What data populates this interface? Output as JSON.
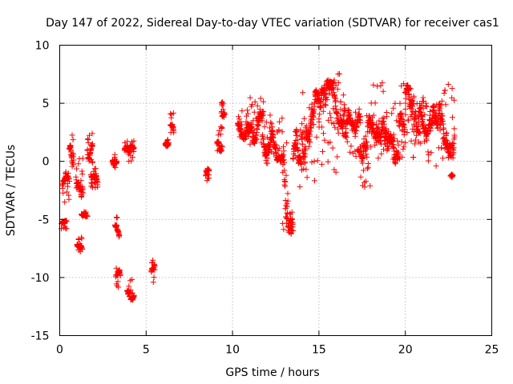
{
  "chart_data": {
    "type": "scatter",
    "title": "Day 147 of 2022, Sidereal Day-to-day VTEC variation (SDTVAR) for receiver cas1",
    "xlabel": "GPS time / hours",
    "ylabel": "SDTVAR / TECUs",
    "xlim": [
      0,
      25
    ],
    "ylim": [
      -15,
      10
    ],
    "xticks": [
      0,
      5,
      10,
      15,
      20,
      25
    ],
    "yticks": [
      -15,
      -10,
      -5,
      0,
      5,
      10
    ],
    "xtick_labels": [
      "0",
      "5",
      "10",
      "15",
      "20",
      "25"
    ],
    "ytick_labels": [
      "-15",
      "-10",
      "-5",
      "0",
      "5",
      "10"
    ],
    "grid": true,
    "marker": "+",
    "color": "#ff0000",
    "segments": [
      {
        "x": [
          0.1,
          0.4
        ],
        "y": [
          -5.8,
          -5.1
        ]
      },
      {
        "x": [
          0.15,
          0.55
        ],
        "y": [
          -3.5,
          -0.7
        ]
      },
      {
        "x": [
          0.55,
          0.8
        ],
        "y": [
          -0.5,
          2.7
        ]
      },
      {
        "x": [
          0.95,
          1.35
        ],
        "y": [
          -3.2,
          0.3
        ]
      },
      {
        "x": [
          1.0,
          1.3
        ],
        "y": [
          -7.8,
          -6.4
        ]
      },
      {
        "x": [
          1.25,
          1.6
        ],
        "y": [
          -4.8,
          -4.3
        ]
      },
      {
        "x": [
          1.6,
          1.9
        ],
        "y": [
          -0.2,
          2.5
        ]
      },
      {
        "x": [
          1.8,
          2.2
        ],
        "y": [
          -2.4,
          0.2
        ]
      },
      {
        "x": [
          3.05,
          3.3
        ],
        "y": [
          -0.6,
          0.9
        ]
      },
      {
        "x": [
          3.25,
          3.5
        ],
        "y": [
          -11.0,
          -9.0
        ]
      },
      {
        "x": [
          3.2,
          3.45
        ],
        "y": [
          -6.6,
          -4.7
        ]
      },
      {
        "x": [
          3.75,
          4.3
        ],
        "y": [
          0.0,
          1.8
        ]
      },
      {
        "x": [
          3.9,
          4.3
        ],
        "y": [
          -12.1,
          -10.0
        ]
      },
      {
        "x": [
          5.3,
          5.5
        ],
        "y": [
          -10.6,
          -8.4
        ]
      },
      {
        "x": [
          6.1,
          6.3
        ],
        "y": [
          0.8,
          2.1
        ]
      },
      {
        "x": [
          6.4,
          6.6
        ],
        "y": [
          2.2,
          4.3
        ]
      },
      {
        "x": [
          8.45,
          8.65
        ],
        "y": [
          -1.7,
          0.0
        ]
      },
      {
        "x": [
          9.1,
          9.4
        ],
        "y": [
          0.6,
          3.0
        ]
      },
      {
        "x": [
          9.35,
          9.55
        ],
        "y": [
          3.2,
          5.4
        ]
      },
      {
        "x": [
          10.3,
          11.0
        ],
        "y": [
          1.8,
          4.6
        ]
      },
      {
        "x": [
          11.0,
          11.8
        ],
        "y": [
          1.4,
          5.6
        ]
      },
      {
        "x": [
          11.8,
          12.3
        ],
        "y": [
          -0.7,
          5.1
        ]
      },
      {
        "x": [
          12.3,
          12.9
        ],
        "y": [
          0.0,
          4.0
        ]
      },
      {
        "x": [
          12.9,
          13.5
        ],
        "y": [
          -6.3,
          2.9
        ]
      },
      {
        "x": [
          13.5,
          14.0
        ],
        "y": [
          -2.4,
          3.1
        ]
      },
      {
        "x": [
          14.0,
          15.0
        ],
        "y": [
          -1.9,
          6.3
        ]
      },
      {
        "x": [
          15.0,
          16.0
        ],
        "y": [
          -1.5,
          7.0
        ]
      },
      {
        "x": [
          16.0,
          16.5
        ],
        "y": [
          0.3,
          8.1
        ]
      },
      {
        "x": [
          16.5,
          17.4
        ],
        "y": [
          0.3,
          4.5
        ]
      },
      {
        "x": [
          17.4,
          18.0
        ],
        "y": [
          -2.3,
          4.1
        ]
      },
      {
        "x": [
          18.0,
          18.8
        ],
        "y": [
          0.2,
          7.0
        ]
      },
      {
        "x": [
          18.8,
          19.6
        ],
        "y": [
          -1.0,
          5.3
        ]
      },
      {
        "x": [
          19.6,
          20.5
        ],
        "y": [
          0.2,
          6.8
        ]
      },
      {
        "x": [
          20.5,
          21.2
        ],
        "y": [
          0.8,
          5.9
        ]
      },
      {
        "x": [
          21.2,
          22.0
        ],
        "y": [
          -0.5,
          5.0
        ]
      },
      {
        "x": [
          22.0,
          22.85
        ],
        "y": [
          0.2,
          6.8
        ]
      },
      {
        "x": [
          22.6,
          22.75
        ],
        "y": [
          -1.4,
          -1.1
        ]
      }
    ]
  }
}
